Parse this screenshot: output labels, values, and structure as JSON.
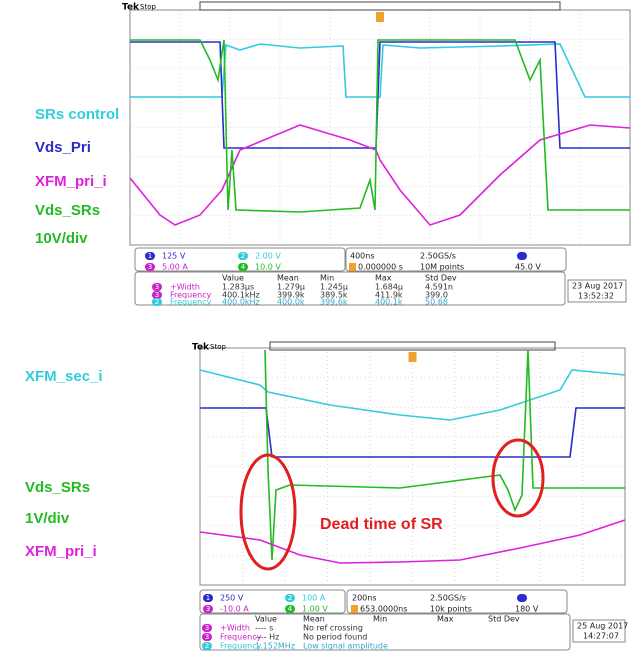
{
  "annotation": "Dead time of SR",
  "scopes": [
    {
      "brand": "Tek",
      "status": "Stop",
      "labels": [
        {
          "text": "SRs control",
          "color": "#33ccdd"
        },
        {
          "text": "Vds_Pri",
          "color": "#2b2bcc"
        },
        {
          "text": "XFM_pri_i",
          "color": "#dd22dd"
        },
        {
          "text": "Vds_SRs",
          "color": "#22bb22"
        },
        {
          "text": "10V/div",
          "color": "#22bb22"
        }
      ],
      "channels": [
        {
          "num": "1",
          "scale": "125 V",
          "color": "#2b2bcc"
        },
        {
          "num": "2",
          "scale": "2.00 V",
          "color": "#33ccdd"
        },
        {
          "num": "3",
          "scale": "5.00 A",
          "color": "#cc22cc"
        },
        {
          "num": "4",
          "scale": "10.0 V",
          "color": "#22bb22"
        }
      ],
      "timebase": "400ns",
      "sample_rate": "2.50GS/s",
      "record": "10M points",
      "trigger_pos": "0.000000 s",
      "trigger_level": "45.0 V",
      "meas_headers": [
        "Value",
        "Mean",
        "Min",
        "Max",
        "Std Dev"
      ],
      "meas_rows": [
        {
          "ch": "3",
          "cells": [
            "+Width",
            "1.283µs",
            "1.279µ",
            "1.245µ",
            "1.684µ",
            "4.591n"
          ]
        },
        {
          "ch": "3",
          "cells": [
            "Frequency",
            "400.1kHz",
            "399.9k",
            "389.5k",
            "411.9k",
            "399.0"
          ]
        },
        {
          "ch": "2",
          "cells": [
            "Frequency",
            "400.0kHz",
            "400.0k",
            "399.6k",
            "400.1k",
            "50.68"
          ]
        }
      ],
      "date": "23 Aug 2017",
      "time": "13:52:32"
    },
    {
      "brand": "Tek",
      "status": "Stop",
      "labels": [
        {
          "text": "XFM_sec_i",
          "color": "#33ccdd"
        },
        {
          "text": "Vds_SRs",
          "color": "#22bb22"
        },
        {
          "text": "1V/div",
          "color": "#22bb22"
        },
        {
          "text": "XFM_pri_i",
          "color": "#dd22dd"
        }
      ],
      "channels": [
        {
          "num": "1",
          "scale": "250 V",
          "color": "#2b2bcc"
        },
        {
          "num": "2",
          "scale": "100 A",
          "color": "#33ccdd"
        },
        {
          "num": "3",
          "scale": "-10.0 A",
          "color": "#cc22cc"
        },
        {
          "num": "4",
          "scale": "1.00 V",
          "color": "#22bb22"
        }
      ],
      "timebase": "200ns",
      "sample_rate": "2.50GS/s",
      "record": "10k points",
      "trigger_pos": "653.0000ns",
      "trigger_level": "180 V",
      "meas_headers": [
        "Value",
        "Mean",
        "Min",
        "Max",
        "Std Dev"
      ],
      "meas_rows": [
        {
          "ch": "3",
          "cells": [
            "+Width",
            "---- s",
            "No ref crossing"
          ]
        },
        {
          "ch": "3",
          "cells": [
            "Frequency",
            "---- Hz",
            "No period found"
          ]
        },
        {
          "ch": "2",
          "cells": [
            "Frequency",
            "1.152MHz",
            "Low signal amplitude"
          ]
        }
      ],
      "date": "25 Aug 2017",
      "time": "14:27:07"
    }
  ]
}
